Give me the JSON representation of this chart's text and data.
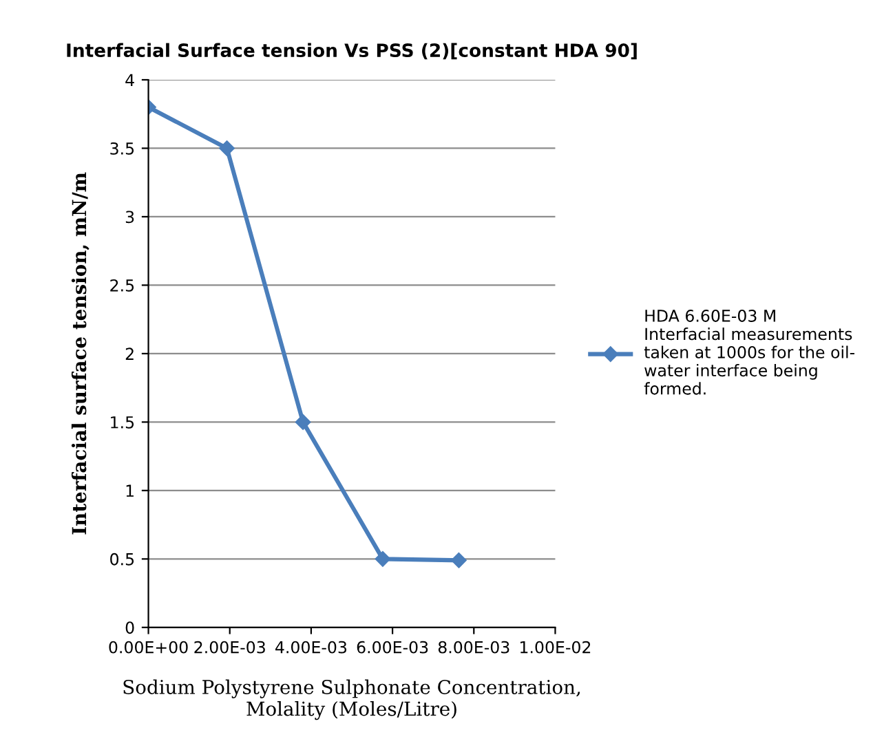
{
  "chart_data": {
    "type": "line",
    "title": "Interfacial Surface tension Vs PSS (2)[constant HDA 90]",
    "xlabel": "Sodium Polystyrene Sulphonate Concentration,\nMolality (Moles/Litre)",
    "ylabel": "Interfacial surface tension, mN/m",
    "x": [
      0,
      0.00193,
      0.0038,
      0.00576,
      0.00763
    ],
    "series": [
      {
        "name": "HDA 6.60E-03 M\nInterfacial measurements\ntaken at 1000s for the oil-\nwater interface being\nformed.",
        "color": "#4a7ebb",
        "values": [
          3.8,
          3.5,
          1.5,
          0.5,
          0.49
        ]
      }
    ],
    "xlim": [
      0,
      0.01
    ],
    "xticks": [
      {
        "value": 0,
        "label": "0.00E+00"
      },
      {
        "value": 0.002,
        "label": "2.00E-03"
      },
      {
        "value": 0.004,
        "label": "4.00E-03"
      },
      {
        "value": 0.006,
        "label": "6.00E-03"
      },
      {
        "value": 0.008,
        "label": "8.00E-03"
      },
      {
        "value": 0.01,
        "label": "1.00E-02"
      }
    ],
    "ylim": [
      0,
      4
    ],
    "yticks": [
      0,
      0.5,
      1,
      1.5,
      2,
      2.5,
      3,
      3.5,
      4
    ],
    "grid": "y",
    "legend": "right",
    "marker": "diamond",
    "line_style": "solid"
  }
}
